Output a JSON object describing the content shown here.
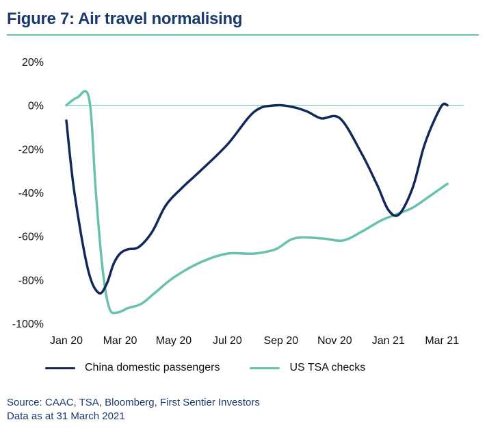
{
  "header": {
    "title": "Figure 7: Air travel normalising"
  },
  "footer": {
    "source": "Source: CAAC, TSA, Bloomberg, First Sentier Investors",
    "date_note": "Data as at 31 March 2021"
  },
  "colors": {
    "title": "#1a3a6e",
    "rule": "#67c1ad",
    "china": "#12285a",
    "us": "#67c1ad",
    "zero_line": "#67c1ad"
  },
  "chart_data": {
    "type": "line",
    "title": "Figure 7: Air travel normalising",
    "x_tick_labels": [
      "Jan 20",
      "Mar 20",
      "May 20",
      "Jul 20",
      "Sep 20",
      "Nov 20",
      "Jan 21",
      "Mar 21"
    ],
    "y_tick_labels": [
      "20%",
      "0%",
      "-20%",
      "-40%",
      "-60%",
      "-80%",
      "-100%"
    ],
    "y_ticks": [
      20,
      0,
      -20,
      -40,
      -60,
      -80,
      -100
    ],
    "ylim": [
      -100,
      20
    ],
    "xlim": [
      0,
      14.3
    ],
    "grid": false,
    "zero_line": true,
    "legend_position": "bottom",
    "series": [
      {
        "name": "China domestic passengers",
        "x": [
          0,
          0.3,
          0.8,
          1.2,
          1.5,
          1.75,
          2.0,
          2.3,
          2.7,
          3.2,
          3.7,
          4.3,
          5,
          6,
          7,
          7.8,
          8.5,
          9,
          9.5,
          10.2,
          11,
          11.6,
          12,
          12.4,
          12.9,
          13.3,
          13.6,
          14,
          14.2
        ],
        "y": [
          -7,
          -40,
          -75,
          -86,
          -82,
          -73,
          -68,
          -66,
          -65,
          -58,
          -46,
          -38,
          -30,
          -18,
          -3,
          0,
          -1,
          -3,
          -6,
          -6,
          -22,
          -37,
          -48,
          -50,
          -38,
          -20,
          -10,
          0,
          0
        ]
      },
      {
        "name": "US TSA checks",
        "x": [
          0,
          0.4,
          0.85,
          1.1,
          1.35,
          1.6,
          1.9,
          2.3,
          2.8,
          3.3,
          4,
          5,
          6,
          7,
          7.8,
          8.5,
          9.5,
          10.3,
          11,
          11.7,
          12.3,
          12.9,
          13.5,
          14.2
        ],
        "y": [
          0,
          3.5,
          3,
          -40,
          -75,
          -93,
          -95,
          -93,
          -91,
          -86,
          -79,
          -72,
          -68,
          -68,
          -66,
          -61,
          -61,
          -62,
          -58,
          -53,
          -50,
          -47,
          -42,
          -36
        ]
      }
    ]
  }
}
